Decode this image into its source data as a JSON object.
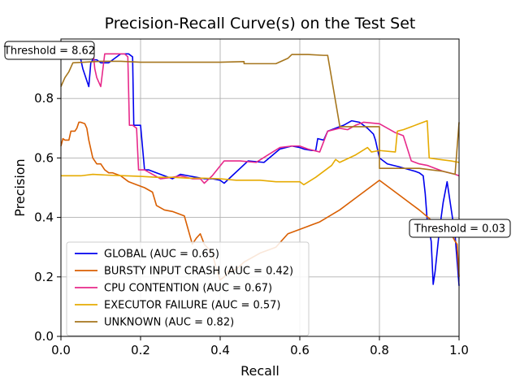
{
  "chart_data": {
    "type": "line",
    "title": "Precision-Recall Curve(s) on the Test Set",
    "xlabel": "Recall",
    "ylabel": "Precision",
    "xlim": [
      0.0,
      1.0
    ],
    "ylim": [
      0.0,
      1.0
    ],
    "xticks": [
      "0.0",
      "0.2",
      "0.4",
      "0.6",
      "0.8",
      "1.0"
    ],
    "yticks": [
      "0.0",
      "0.2",
      "0.4",
      "0.6",
      "0.8"
    ],
    "grid": true,
    "legend_position": "lower-left",
    "series": [
      {
        "name": "GLOBAL (AUC = 0.65)",
        "color": "#0000ee",
        "x": [
          0.04,
          0.055,
          0.065,
          0.07,
          0.075,
          0.08,
          0.09,
          0.1,
          0.11,
          0.12,
          0.13,
          0.14,
          0.15,
          0.16,
          0.17,
          0.18,
          0.183,
          0.19,
          0.2,
          0.21,
          0.22,
          0.24,
          0.26,
          0.28,
          0.3,
          0.32,
          0.34,
          0.36,
          0.38,
          0.4,
          0.41,
          0.43,
          0.47,
          0.51,
          0.55,
          0.58,
          0.6,
          0.61,
          0.63,
          0.64,
          0.645,
          0.66,
          0.67,
          0.69,
          0.71,
          0.73,
          0.75,
          0.77,
          0.785,
          0.79,
          0.8,
          0.82,
          0.85,
          0.89,
          0.9,
          0.91,
          0.915,
          0.92,
          0.93,
          0.935,
          0.94,
          0.95,
          0.96,
          0.97,
          0.98,
          0.99,
          1.0
        ],
        "y": [
          0.99,
          0.9,
          0.86,
          0.84,
          0.92,
          0.93,
          0.93,
          0.92,
          0.92,
          0.92,
          0.93,
          0.94,
          0.95,
          0.95,
          0.95,
          0.94,
          0.71,
          0.71,
          0.71,
          0.56,
          0.56,
          0.55,
          0.54,
          0.53,
          0.545,
          0.54,
          0.535,
          0.53,
          0.53,
          0.525,
          0.515,
          0.54,
          0.59,
          0.585,
          0.63,
          0.64,
          0.635,
          0.63,
          0.625,
          0.625,
          0.665,
          0.66,
          0.69,
          0.7,
          0.71,
          0.725,
          0.72,
          0.7,
          0.68,
          0.66,
          0.6,
          0.58,
          0.57,
          0.555,
          0.55,
          0.54,
          0.48,
          0.39,
          0.32,
          0.175,
          0.22,
          0.35,
          0.45,
          0.52,
          0.43,
          0.34,
          0.17
        ]
      },
      {
        "name": "BURSTY INPUT CRASH (AUC = 0.42)",
        "color": "#d95f02",
        "x": [
          0.0,
          0.005,
          0.01,
          0.02,
          0.025,
          0.035,
          0.04,
          0.045,
          0.05,
          0.06,
          0.065,
          0.07,
          0.08,
          0.085,
          0.09,
          0.1,
          0.11,
          0.12,
          0.13,
          0.15,
          0.17,
          0.19,
          0.21,
          0.23,
          0.24,
          0.26,
          0.28,
          0.31,
          0.33,
          0.34,
          0.35,
          0.36,
          0.38,
          0.39,
          0.4,
          0.41,
          0.42,
          0.44,
          0.46,
          0.5,
          0.54,
          0.57,
          0.62,
          0.65,
          0.7,
          0.75,
          0.8,
          0.85,
          0.9,
          0.94,
          0.96,
          0.98,
          0.99,
          0.995,
          1.0
        ],
        "y": [
          0.64,
          0.665,
          0.66,
          0.66,
          0.69,
          0.69,
          0.7,
          0.72,
          0.72,
          0.715,
          0.7,
          0.66,
          0.6,
          0.59,
          0.58,
          0.58,
          0.56,
          0.55,
          0.55,
          0.54,
          0.52,
          0.51,
          0.5,
          0.485,
          0.44,
          0.425,
          0.42,
          0.405,
          0.31,
          0.33,
          0.345,
          0.31,
          0.28,
          0.23,
          0.19,
          0.2,
          0.22,
          0.225,
          0.25,
          0.28,
          0.3,
          0.345,
          0.37,
          0.385,
          0.425,
          0.475,
          0.525,
          0.475,
          0.425,
          0.38,
          0.36,
          0.345,
          0.32,
          0.31,
          0.2
        ]
      },
      {
        "name": "CPU CONTENTION (AUC = 0.67)",
        "color": "#e7298a",
        "x": [
          0.08,
          0.085,
          0.09,
          0.1,
          0.11,
          0.13,
          0.15,
          0.16,
          0.168,
          0.172,
          0.18,
          0.19,
          0.195,
          0.21,
          0.23,
          0.25,
          0.28,
          0.3,
          0.33,
          0.35,
          0.36,
          0.38,
          0.41,
          0.45,
          0.49,
          0.52,
          0.55,
          0.58,
          0.6,
          0.62,
          0.65,
          0.67,
          0.7,
          0.72,
          0.74,
          0.76,
          0.8,
          0.84,
          0.86,
          0.88,
          0.9,
          0.92,
          0.94,
          0.96,
          0.99,
          1.0
        ],
        "y": [
          0.97,
          0.9,
          0.87,
          0.84,
          0.95,
          0.95,
          0.95,
          0.95,
          0.94,
          0.71,
          0.71,
          0.7,
          0.56,
          0.56,
          0.545,
          0.53,
          0.535,
          0.54,
          0.53,
          0.53,
          0.515,
          0.54,
          0.59,
          0.59,
          0.585,
          0.61,
          0.635,
          0.64,
          0.64,
          0.63,
          0.62,
          0.69,
          0.7,
          0.695,
          0.71,
          0.72,
          0.715,
          0.685,
          0.675,
          0.59,
          0.58,
          0.575,
          0.565,
          0.555,
          0.545,
          0.54
        ]
      },
      {
        "name": "EXECUTOR FAILURE (AUC = 0.57)",
        "color": "#e6ab02",
        "x": [
          0.0,
          0.05,
          0.08,
          0.12,
          0.16,
          0.2,
          0.24,
          0.28,
          0.32,
          0.36,
          0.4,
          0.44,
          0.46,
          0.5,
          0.54,
          0.56,
          0.6,
          0.61,
          0.64,
          0.68,
          0.69,
          0.7,
          0.74,
          0.77,
          0.78,
          0.8,
          0.84,
          0.845,
          0.86,
          0.88,
          0.9,
          0.92,
          0.925,
          0.95,
          0.98,
          1.0
        ],
        "y": [
          0.54,
          0.54,
          0.545,
          0.542,
          0.54,
          0.538,
          0.535,
          0.535,
          0.532,
          0.532,
          0.53,
          0.525,
          0.525,
          0.525,
          0.52,
          0.52,
          0.52,
          0.51,
          0.535,
          0.575,
          0.595,
          0.585,
          0.61,
          0.635,
          0.62,
          0.625,
          0.62,
          0.69,
          0.695,
          0.705,
          0.715,
          0.725,
          0.6,
          0.595,
          0.59,
          0.585
        ]
      },
      {
        "name": "UNKNOWN (AUC = 0.82)",
        "color": "#a6761d",
        "x": [
          0.0,
          0.01,
          0.02,
          0.03,
          0.1,
          0.15,
          0.2,
          0.3,
          0.4,
          0.46,
          0.46,
          0.54,
          0.57,
          0.58,
          0.62,
          0.66,
          0.67,
          0.7,
          0.7,
          0.8,
          0.8,
          0.85,
          0.9,
          0.93,
          0.96,
          0.99,
          1.0
        ],
        "y": [
          0.84,
          0.87,
          0.89,
          0.92,
          0.925,
          0.925,
          0.922,
          0.922,
          0.922,
          0.924,
          0.917,
          0.917,
          0.935,
          0.948,
          0.948,
          0.945,
          0.945,
          0.71,
          0.705,
          0.705,
          0.565,
          0.565,
          0.565,
          0.56,
          0.555,
          0.545,
          0.72
        ]
      }
    ],
    "annotations": [
      {
        "text": "Threshold = 8.62",
        "x": 0.0,
        "y": 0.99
      },
      {
        "text": "Threshold = 0.03",
        "x": 1.0,
        "y": 0.385
      }
    ]
  }
}
